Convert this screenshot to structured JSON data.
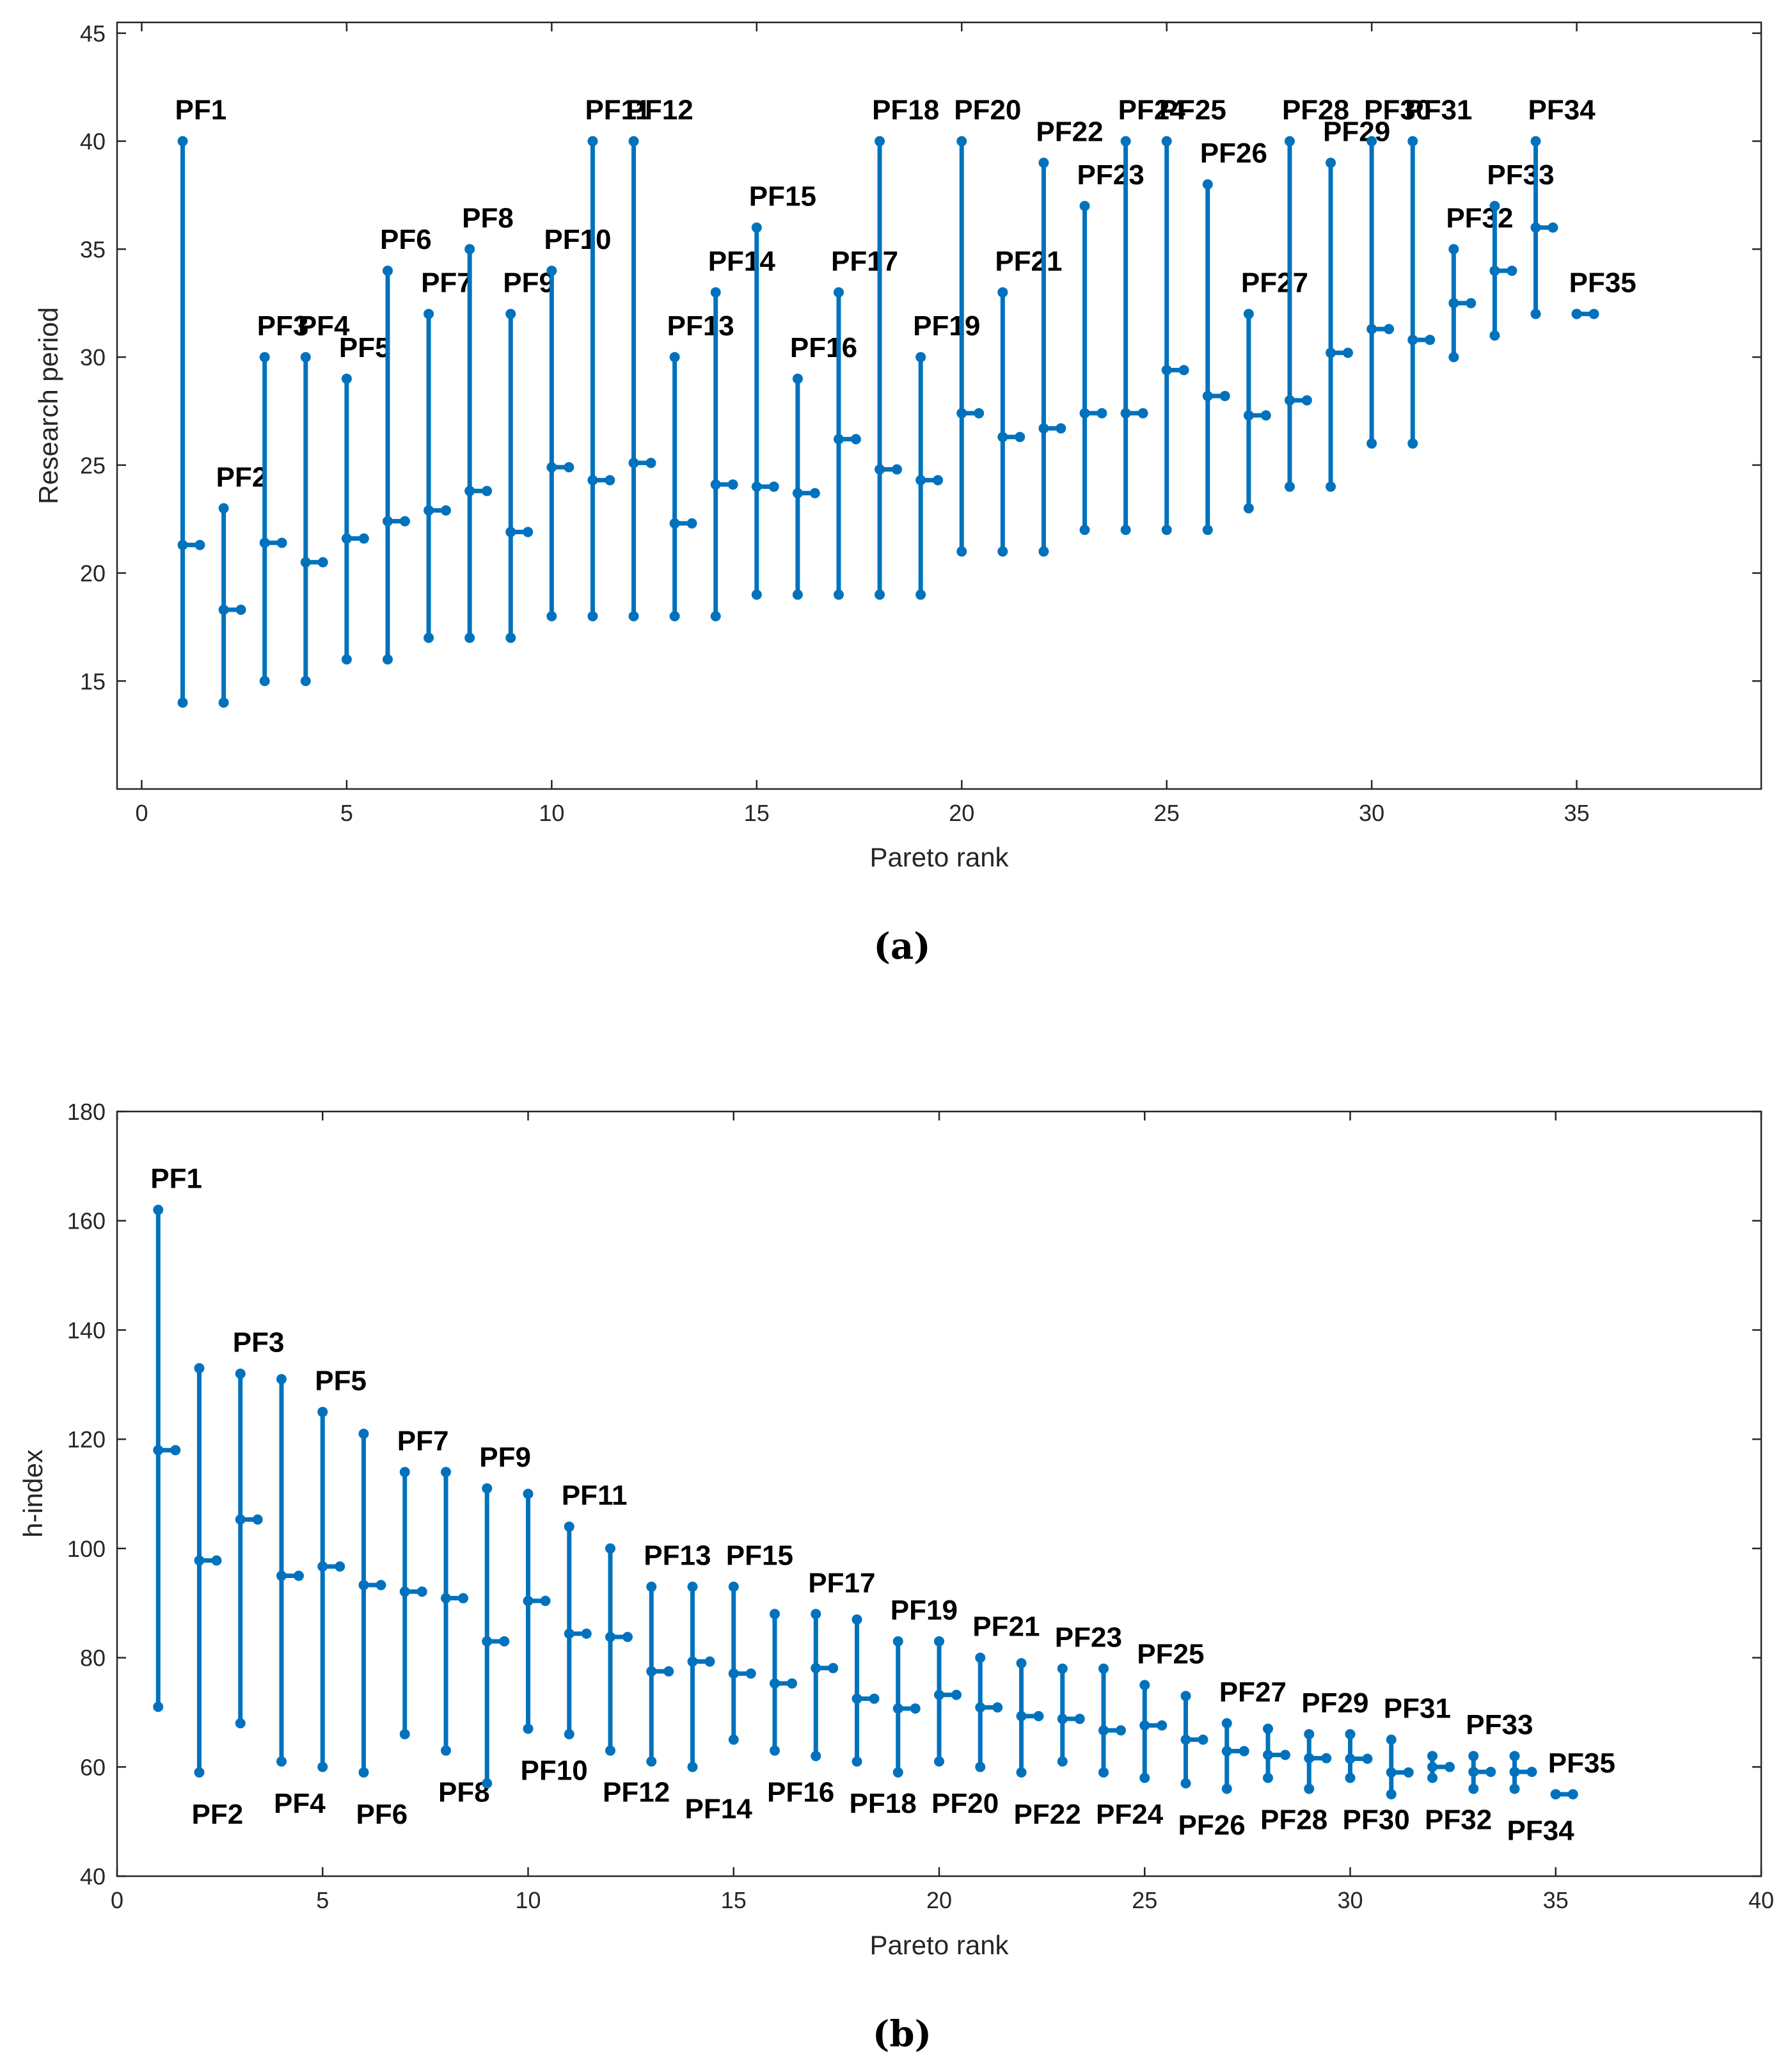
{
  "colors": {
    "series": "#0072BD",
    "axis": "#262626",
    "label": "#000000"
  },
  "chart_data": [
    {
      "type": "errorbar",
      "caption": "(a)",
      "xlabel": "Pareto rank",
      "ylabel": "Research period",
      "xlim": [
        -0.6,
        39.5
      ],
      "ylim": [
        10,
        45.5
      ],
      "xticks": [
        0,
        5,
        10,
        15,
        20,
        25,
        30,
        35
      ],
      "yticks": [
        15,
        20,
        25,
        30,
        35,
        40,
        45
      ],
      "grid": false,
      "points": [
        {
          "label": "PF1",
          "x": 1,
          "min": 14,
          "max": 40,
          "mean": 21.3,
          "label_pos": "top"
        },
        {
          "label": "PF2",
          "x": 2,
          "min": 14,
          "max": 23,
          "mean": 18.3,
          "label_pos": "top"
        },
        {
          "label": "PF3",
          "x": 3,
          "min": 15,
          "max": 30,
          "mean": 21.4,
          "label_pos": "top"
        },
        {
          "label": "PF4",
          "x": 4,
          "min": 15,
          "max": 30,
          "mean": 20.5,
          "label_pos": "top"
        },
        {
          "label": "PF5",
          "x": 5,
          "min": 16,
          "max": 29,
          "mean": 21.6,
          "label_pos": "top"
        },
        {
          "label": "PF6",
          "x": 6,
          "min": 16,
          "max": 34,
          "mean": 22.4,
          "label_pos": "top"
        },
        {
          "label": "PF7",
          "x": 7,
          "min": 17,
          "max": 32,
          "mean": 22.9,
          "label_pos": "top"
        },
        {
          "label": "PF8",
          "x": 8,
          "min": 17,
          "max": 35,
          "mean": 23.8,
          "label_pos": "top"
        },
        {
          "label": "PF9",
          "x": 9,
          "min": 17,
          "max": 32,
          "mean": 21.9,
          "label_pos": "top"
        },
        {
          "label": "PF10",
          "x": 10,
          "min": 18,
          "max": 34,
          "mean": 24.9,
          "label_pos": "top"
        },
        {
          "label": "PF11",
          "x": 11,
          "min": 18,
          "max": 40,
          "mean": 24.3,
          "label_pos": "top"
        },
        {
          "label": "PF12",
          "x": 12,
          "min": 18,
          "max": 40,
          "mean": 25.1,
          "label_pos": "top"
        },
        {
          "label": "PF13",
          "x": 13,
          "min": 18,
          "max": 30,
          "mean": 22.3,
          "label_pos": "top"
        },
        {
          "label": "PF14",
          "x": 14,
          "min": 18,
          "max": 33,
          "mean": 24.1,
          "label_pos": "top"
        },
        {
          "label": "PF15",
          "x": 15,
          "min": 19,
          "max": 36,
          "mean": 24.0,
          "label_pos": "top"
        },
        {
          "label": "PF16",
          "x": 16,
          "min": 19,
          "max": 29,
          "mean": 23.7,
          "label_pos": "top"
        },
        {
          "label": "PF17",
          "x": 17,
          "min": 19,
          "max": 33,
          "mean": 26.2,
          "label_pos": "top"
        },
        {
          "label": "PF18",
          "x": 18,
          "min": 19,
          "max": 40,
          "mean": 24.8,
          "label_pos": "top"
        },
        {
          "label": "PF19",
          "x": 19,
          "min": 19,
          "max": 30,
          "mean": 24.3,
          "label_pos": "top"
        },
        {
          "label": "PF20",
          "x": 20,
          "min": 21,
          "max": 40,
          "mean": 27.4,
          "label_pos": "top"
        },
        {
          "label": "PF21",
          "x": 21,
          "min": 21,
          "max": 33,
          "mean": 26.3,
          "label_pos": "top"
        },
        {
          "label": "PF22",
          "x": 22,
          "min": 21,
          "max": 39,
          "mean": 26.7,
          "label_pos": "top"
        },
        {
          "label": "PF23",
          "x": 23,
          "min": 22,
          "max": 37,
          "mean": 27.4,
          "label_pos": "top"
        },
        {
          "label": "PF24",
          "x": 24,
          "min": 22,
          "max": 40,
          "mean": 27.4,
          "label_pos": "top"
        },
        {
          "label": "PF25",
          "x": 25,
          "min": 22,
          "max": 40,
          "mean": 29.4,
          "label_pos": "top"
        },
        {
          "label": "PF26",
          "x": 26,
          "min": 22,
          "max": 38,
          "mean": 28.2,
          "label_pos": "top"
        },
        {
          "label": "PF27",
          "x": 27,
          "min": 23,
          "max": 32,
          "mean": 27.3,
          "label_pos": "top"
        },
        {
          "label": "PF28",
          "x": 28,
          "min": 24,
          "max": 40,
          "mean": 28.0,
          "label_pos": "top"
        },
        {
          "label": "PF29",
          "x": 29,
          "min": 24,
          "max": 39,
          "mean": 30.2,
          "label_pos": "top"
        },
        {
          "label": "PF30",
          "x": 30,
          "min": 26,
          "max": 40,
          "mean": 31.3,
          "label_pos": "top"
        },
        {
          "label": "PF31",
          "x": 31,
          "min": 26,
          "max": 40,
          "mean": 30.8,
          "label_pos": "top"
        },
        {
          "label": "PF32",
          "x": 32,
          "min": 30,
          "max": 35,
          "mean": 32.5,
          "label_pos": "top"
        },
        {
          "label": "PF33",
          "x": 33,
          "min": 31,
          "max": 37,
          "mean": 34.0,
          "label_pos": "top"
        },
        {
          "label": "PF34",
          "x": 34,
          "min": 32,
          "max": 40,
          "mean": 36.0,
          "label_pos": "top"
        },
        {
          "label": "PF35",
          "x": 35,
          "min": 32,
          "max": 32,
          "mean": 32.0,
          "label_pos": "top"
        }
      ]
    },
    {
      "type": "errorbar",
      "caption": "(b)",
      "xlabel": "Pareto rank",
      "ylabel": "h-index",
      "xlim": [
        0,
        40
      ],
      "ylim": [
        40,
        180
      ],
      "xticks": [
        0,
        5,
        10,
        15,
        20,
        25,
        30,
        35,
        40
      ],
      "yticks": [
        40,
        60,
        80,
        100,
        120,
        140,
        160,
        180
      ],
      "grid": false,
      "points": [
        {
          "label": "PF1",
          "x": 1,
          "min": 71,
          "max": 162,
          "mean": 118.0,
          "label_pos": "top"
        },
        {
          "label": "PF2",
          "x": 2,
          "min": 59,
          "max": 133,
          "mean": 97.8,
          "label_pos": "bottom"
        },
        {
          "label": "PF3",
          "x": 3,
          "min": 68,
          "max": 132,
          "mean": 105.3,
          "label_pos": "top"
        },
        {
          "label": "PF4",
          "x": 4,
          "min": 61,
          "max": 131,
          "mean": 95.0,
          "label_pos": "bottom"
        },
        {
          "label": "PF5",
          "x": 5,
          "min": 60,
          "max": 125,
          "mean": 96.7,
          "label_pos": "top"
        },
        {
          "label": "PF6",
          "x": 6,
          "min": 59,
          "max": 121,
          "mean": 93.3,
          "label_pos": "bottom"
        },
        {
          "label": "PF7",
          "x": 7,
          "min": 66,
          "max": 114,
          "mean": 92.1,
          "label_pos": "top"
        },
        {
          "label": "PF8",
          "x": 8,
          "min": 63,
          "max": 114,
          "mean": 90.9,
          "label_pos": "bottom"
        },
        {
          "label": "PF9",
          "x": 9,
          "min": 57,
          "max": 111,
          "mean": 83.0,
          "label_pos": "top"
        },
        {
          "label": "PF10",
          "x": 10,
          "min": 67,
          "max": 110,
          "mean": 90.4,
          "label_pos": "bottom"
        },
        {
          "label": "PF11",
          "x": 11,
          "min": 66,
          "max": 104,
          "mean": 84.4,
          "label_pos": "top"
        },
        {
          "label": "PF12",
          "x": 12,
          "min": 63,
          "max": 100,
          "mean": 83.8,
          "label_pos": "bottom"
        },
        {
          "label": "PF13",
          "x": 13,
          "min": 61,
          "max": 93,
          "mean": 77.5,
          "label_pos": "top"
        },
        {
          "label": "PF14",
          "x": 14,
          "min": 60,
          "max": 93,
          "mean": 79.3,
          "label_pos": "bottom"
        },
        {
          "label": "PF15",
          "x": 15,
          "min": 65,
          "max": 93,
          "mean": 77.1,
          "label_pos": "top"
        },
        {
          "label": "PF16",
          "x": 16,
          "min": 63,
          "max": 88,
          "mean": 75.3,
          "label_pos": "bottom"
        },
        {
          "label": "PF17",
          "x": 17,
          "min": 62,
          "max": 88,
          "mean": 78.1,
          "label_pos": "top"
        },
        {
          "label": "PF18",
          "x": 18,
          "min": 61,
          "max": 87,
          "mean": 72.5,
          "label_pos": "bottom"
        },
        {
          "label": "PF19",
          "x": 19,
          "min": 59,
          "max": 83,
          "mean": 70.7,
          "label_pos": "top"
        },
        {
          "label": "PF20",
          "x": 20,
          "min": 61,
          "max": 83,
          "mean": 73.2,
          "label_pos": "bottom"
        },
        {
          "label": "PF21",
          "x": 21,
          "min": 60,
          "max": 80,
          "mean": 70.9,
          "label_pos": "top"
        },
        {
          "label": "PF22",
          "x": 22,
          "min": 59,
          "max": 79,
          "mean": 69.3,
          "label_pos": "bottom"
        },
        {
          "label": "PF23",
          "x": 23,
          "min": 61,
          "max": 78,
          "mean": 68.8,
          "label_pos": "top"
        },
        {
          "label": "PF24",
          "x": 24,
          "min": 59,
          "max": 78,
          "mean": 66.7,
          "label_pos": "bottom"
        },
        {
          "label": "PF25",
          "x": 25,
          "min": 58,
          "max": 75,
          "mean": 67.6,
          "label_pos": "top"
        },
        {
          "label": "PF26",
          "x": 26,
          "min": 57,
          "max": 73,
          "mean": 65.0,
          "label_pos": "bottom"
        },
        {
          "label": "PF27",
          "x": 27,
          "min": 56,
          "max": 68,
          "mean": 62.9,
          "label_pos": "top"
        },
        {
          "label": "PF28",
          "x": 28,
          "min": 58,
          "max": 67,
          "mean": 62.2,
          "label_pos": "bottom"
        },
        {
          "label": "PF29",
          "x": 29,
          "min": 56,
          "max": 66,
          "mean": 61.6,
          "label_pos": "top"
        },
        {
          "label": "PF30",
          "x": 30,
          "min": 58,
          "max": 66,
          "mean": 61.5,
          "label_pos": "bottom"
        },
        {
          "label": "PF31",
          "x": 31,
          "min": 55,
          "max": 65,
          "mean": 59.0,
          "label_pos": "top"
        },
        {
          "label": "PF32",
          "x": 32,
          "min": 58,
          "max": 62,
          "mean": 60.0,
          "label_pos": "bottom"
        },
        {
          "label": "PF33",
          "x": 33,
          "min": 56,
          "max": 62,
          "mean": 59.1,
          "label_pos": "top"
        },
        {
          "label": "PF34",
          "x": 34,
          "min": 56,
          "max": 62,
          "mean": 59.1,
          "label_pos": "bottom"
        },
        {
          "label": "PF35",
          "x": 35,
          "min": 55,
          "max": 55,
          "mean": 55.0,
          "label_pos": "top"
        }
      ]
    }
  ]
}
